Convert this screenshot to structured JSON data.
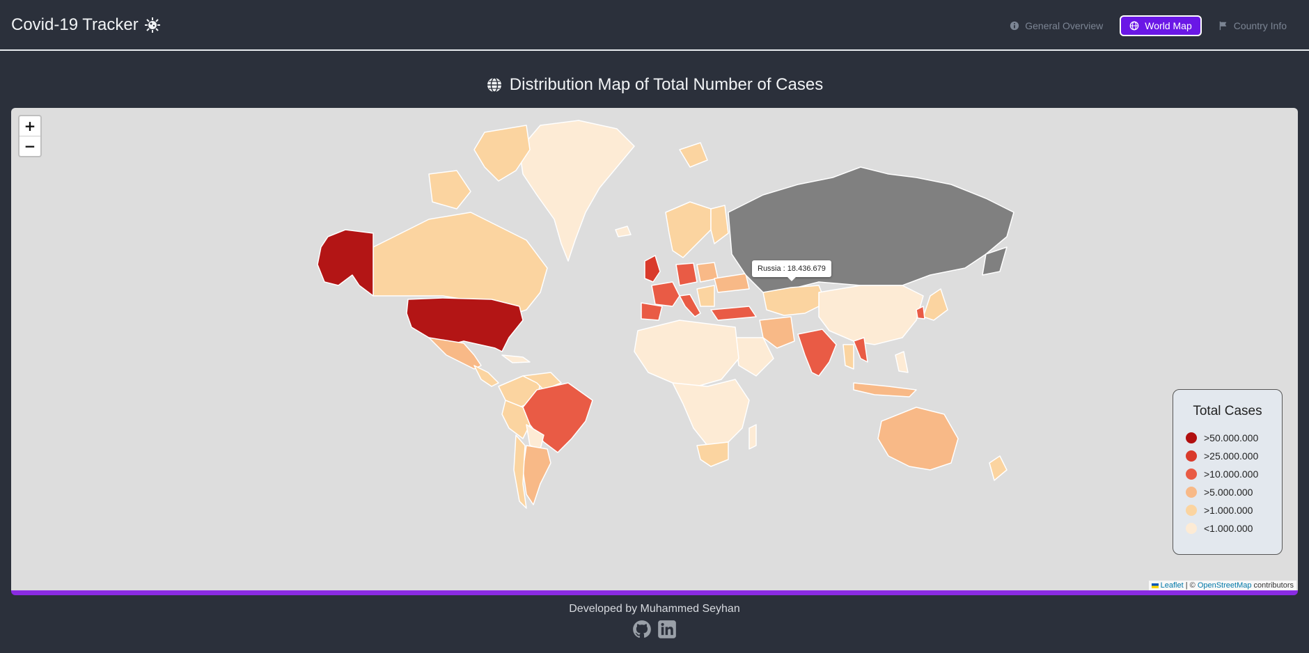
{
  "header": {
    "title": "Covid-19 Tracker",
    "nav": [
      {
        "label": "General Overview",
        "icon": "info-icon",
        "active": false
      },
      {
        "label": "World Map",
        "icon": "globe-icon",
        "active": true
      },
      {
        "label": "Country Info",
        "icon": "flag-icon",
        "active": false
      }
    ]
  },
  "page": {
    "title": "Distribution Map of Total Number of Cases"
  },
  "map": {
    "zoom_in_label": "+",
    "zoom_out_label": "−",
    "tooltip": "Russia : 18.436.679",
    "attribution": {
      "leaflet": "Leaflet",
      "separator": " | © ",
      "osm": "OpenStreetMap",
      "suffix": " contributors"
    }
  },
  "legend": {
    "title": "Total Cases",
    "items": [
      {
        "label": ">50.000.000",
        "color": "#b10f0f"
      },
      {
        "label": ">25.000.000",
        "color": "#d93a2b"
      },
      {
        "label": ">10.000.000",
        "color": "#e95b45"
      },
      {
        "label": ">5.000.000",
        "color": "#f8b987"
      },
      {
        "label": ">1.000.000",
        "color": "#fbd4a0"
      },
      {
        "label": "<1.000.000",
        "color": "#fdebd5"
      }
    ]
  },
  "footer": {
    "credit": "Developed by Muhammed Seyhan",
    "icons": [
      "github-icon",
      "linkedin-icon"
    ]
  },
  "colors": {
    "background": "#2b303b",
    "accent": "#6a17e6",
    "map_background": "#dddddd",
    "no_data": "#808080"
  }
}
